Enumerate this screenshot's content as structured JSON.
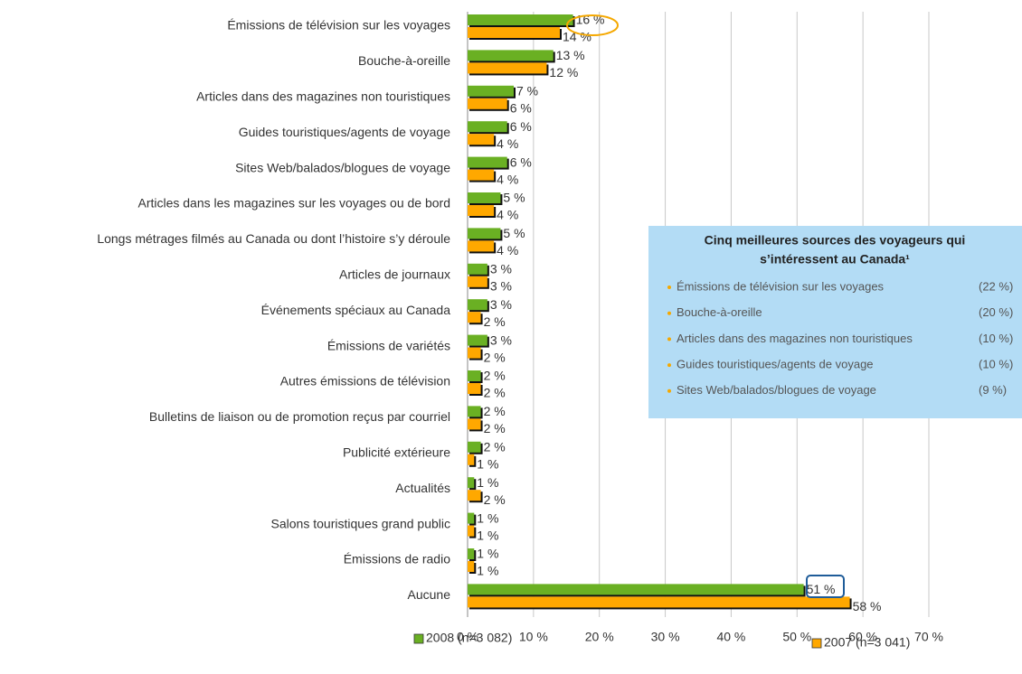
{
  "chart_data": {
    "type": "hbar",
    "categories": [
      "Émissions de télévision sur les voyages",
      "Bouche-à-oreille",
      "Articles dans des magazines non touristiques",
      "Guides touristiques/agents de voyage",
      "Sites Web/balados/blogues de voyage",
      "Articles dans les magazines sur les voyages ou de bord",
      "Longs métrages filmés au Canada ou dont l’histoire s’y déroule",
      "Articles de journaux",
      "Événements spéciaux au Canada",
      "Émissions de variétés",
      "Autres émissions de télévision",
      "Bulletins de liaison ou de promotion reçus par courriel",
      "Publicité extérieure",
      "Actualités",
      "Salons touristiques grand public",
      "Émissions de radio",
      "Aucune"
    ],
    "series": [
      {
        "name": "2008 (n=3 082)",
        "color": "#6ab023",
        "values": [
          16,
          13,
          7,
          6,
          6,
          5,
          5,
          3,
          3,
          3,
          2,
          2,
          2,
          1,
          1,
          1,
          51
        ],
        "value_labels": [
          "16 %",
          "13 %",
          "7 %",
          "6 %",
          "6 %",
          "5 %",
          "5 %",
          "3 %",
          "3 %",
          "3 %",
          "2 %",
          "2 %",
          "2 %",
          "1 %",
          "1 %",
          "1 %",
          "51 %"
        ]
      },
      {
        "name": "2007 (n=3 041)",
        "color": "#ffa800",
        "values": [
          14,
          12,
          6,
          4,
          4,
          4,
          4,
          3,
          2,
          2,
          2,
          2,
          1,
          2,
          1,
          1,
          58
        ],
        "value_labels": [
          "14 %",
          "12 %",
          "6 %",
          "4 %",
          "4 %",
          "4 %",
          "4 %",
          "3 %",
          "2 %",
          "2 %",
          "2 %",
          "2 %",
          "1 %",
          "2 %",
          "1 %",
          "1 %",
          "58 %"
        ]
      }
    ],
    "xlim": [
      0,
      70
    ],
    "xticks": [
      {
        "value": 0,
        "label": "0 %"
      },
      {
        "value": 10,
        "label": "10 %"
      },
      {
        "value": 20,
        "label": "20 %"
      },
      {
        "value": 30,
        "label": "30 %"
      },
      {
        "value": 40,
        "label": "40 %"
      },
      {
        "value": 50,
        "label": "50 %"
      },
      {
        "value": 60,
        "label": "60 %"
      },
      {
        "value": 70,
        "label": "70 %"
      }
    ],
    "grid": true
  },
  "info_box": {
    "title_lines": [
      "Cinq meilleures sources des voyageurs qui",
      "s’intéressent au Canada¹"
    ],
    "items": [
      {
        "label": "Émissions de télévision sur les voyages",
        "value": "(22 %)"
      },
      {
        "label": "Bouche-à-oreille",
        "value": "(20 %)"
      },
      {
        "label": "Articles dans des magazines non touristiques",
        "value": "(10 %)"
      },
      {
        "label": "Guides touristiques/agents de voyage",
        "value": "(10 %)"
      },
      {
        "label": "Sites Web/balados/blogues de voyage",
        "value": "(9 %)"
      }
    ]
  }
}
